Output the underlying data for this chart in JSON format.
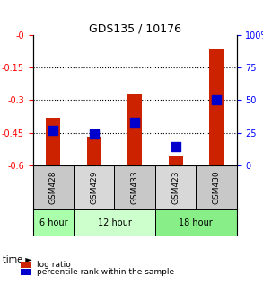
{
  "title": "GDS135 / 10176",
  "samples": [
    "GSM428",
    "GSM429",
    "GSM433",
    "GSM423",
    "GSM430"
  ],
  "time_groups": [
    {
      "label": "6 hour",
      "samples": [
        "GSM428"
      ],
      "color": "#90EE90"
    },
    {
      "label": "12 hour",
      "samples": [
        "GSM429",
        "GSM433"
      ],
      "color": "#90EE90"
    },
    {
      "label": "18 hour",
      "samples": [
        "GSM423",
        "GSM430"
      ],
      "color": "#66DD66"
    }
  ],
  "log_ratio": [
    -0.38,
    -0.47,
    -0.27,
    -0.56,
    -0.06
  ],
  "percentile_rank": [
    0.27,
    0.24,
    0.33,
    0.14,
    0.5
  ],
  "ylim_left": [
    -0.6,
    0.0
  ],
  "ylim_right": [
    0.0,
    1.0
  ],
  "yticks_left": [
    -0.6,
    -0.45,
    -0.3,
    -0.15,
    0.0
  ],
  "yticks_right": [
    0.0,
    0.25,
    0.5,
    0.75,
    1.0
  ],
  "ytick_labels_right": [
    "0",
    "25",
    "50",
    "75",
    "100%"
  ],
  "ytick_labels_left": [
    "-0.6",
    "-0.45",
    "-0.3",
    "-0.15",
    "-0"
  ],
  "hlines": [
    -0.15,
    -0.3,
    -0.45
  ],
  "bar_color": "#cc2200",
  "dot_color": "#0000cc",
  "bar_width": 0.35,
  "dot_size": 60,
  "group_colors": [
    "#bbbbbb",
    "#cccccc",
    "#bbbbbb",
    "#cccccc",
    "#bbbbbb"
  ],
  "time_row_colors": [
    "#aaffaa",
    "#ccffcc",
    "#66ee66"
  ],
  "legend_bar_label": "log ratio",
  "legend_dot_label": "percentile rank within the sample",
  "xlabel_time": "time",
  "time_label_colors": [
    "#88ee88",
    "#aaffaa",
    "#55dd55"
  ]
}
